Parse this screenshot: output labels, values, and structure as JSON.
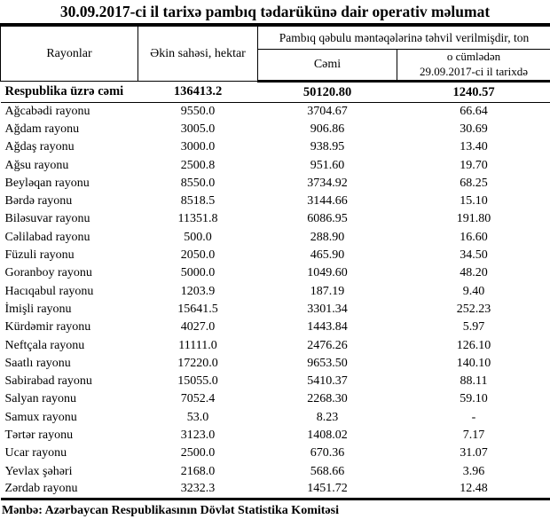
{
  "title": "30.09.2017-ci il tarixə pambıq tədarükünə dair operativ məlumat",
  "table": {
    "headers": {
      "rayonlar": "Rayonlar",
      "ekin_sahesi": "Əkin sahəsi, hektar",
      "tehvil_group": "Pambıq qəbulu məntəqələrinə təhvil verilmişdir, ton",
      "cemi": "Cəmi",
      "o_cumleden_line1": "o cümlədən",
      "o_cumleden_line2": "29.09.2017-ci il tarixdə"
    },
    "total_row": {
      "name": "Respublika üzrə cəmi",
      "area": "136413.2",
      "total": "50120.80",
      "daily": "1240.57"
    },
    "rows": [
      {
        "name": "Ağcabədi rayonu",
        "area": "9550.0",
        "total": "3704.67",
        "daily": "66.64"
      },
      {
        "name": "Ağdam rayonu",
        "area": "3005.0",
        "total": "906.86",
        "daily": "30.69"
      },
      {
        "name": "Ağdaş rayonu",
        "area": "3000.0",
        "total": "938.95",
        "daily": "13.40"
      },
      {
        "name": "Ağsu rayonu",
        "area": "2500.8",
        "total": "951.60",
        "daily": "19.70"
      },
      {
        "name": "Beyləqan rayonu",
        "area": "8550.0",
        "total": "3734.92",
        "daily": "68.25"
      },
      {
        "name": "Bərdə rayonu",
        "area": "8518.5",
        "total": "3144.66",
        "daily": "15.10"
      },
      {
        "name": "Biləsuvar rayonu",
        "area": "11351.8",
        "total": "6086.95",
        "daily": "191.80"
      },
      {
        "name": "Cəlilabad rayonu",
        "area": "500.0",
        "total": "288.90",
        "daily": "16.60"
      },
      {
        "name": "Füzuli rayonu",
        "area": "2050.0",
        "total": "465.90",
        "daily": "34.50"
      },
      {
        "name": "Goranboy rayonu",
        "area": "5000.0",
        "total": "1049.60",
        "daily": "48.20"
      },
      {
        "name": "Hacıqabul rayonu",
        "area": "1203.9",
        "total": "187.19",
        "daily": "9.40"
      },
      {
        "name": "İmişli rayonu",
        "area": "15641.5",
        "total": "3301.34",
        "daily": "252.23"
      },
      {
        "name": "Kürdəmir rayonu",
        "area": "4027.0",
        "total": "1443.84",
        "daily": "5.97"
      },
      {
        "name": "Neftçala rayonu",
        "area": "11111.0",
        "total": "2476.26",
        "daily": "126.10"
      },
      {
        "name": "Saatlı rayonu",
        "area": "17220.0",
        "total": "9653.50",
        "daily": "140.10"
      },
      {
        "name": "Sabirabad rayonu",
        "area": "15055.0",
        "total": "5410.37",
        "daily": "88.11"
      },
      {
        "name": "Salyan rayonu",
        "area": "7052.4",
        "total": "2268.30",
        "daily": "59.10"
      },
      {
        "name": "Samux rayonu",
        "area": "53.0",
        "total": "8.23",
        "daily": "-"
      },
      {
        "name": "Tərtər rayonu",
        "area": "3123.0",
        "total": "1408.02",
        "daily": "7.17"
      },
      {
        "name": "Ucar rayonu",
        "area": "2500.0",
        "total": "670.36",
        "daily": "31.07"
      },
      {
        "name": "Yevlax şəhəri",
        "area": "2168.0",
        "total": "568.66",
        "daily": "3.96"
      },
      {
        "name": "Zərdab rayonu",
        "area": "3232.3",
        "total": "1451.72",
        "daily": "12.48"
      }
    ]
  },
  "footer": {
    "source": "Mənbə: Azərbaycan Respublikasının Dövlət Statistika Komitəsi"
  }
}
